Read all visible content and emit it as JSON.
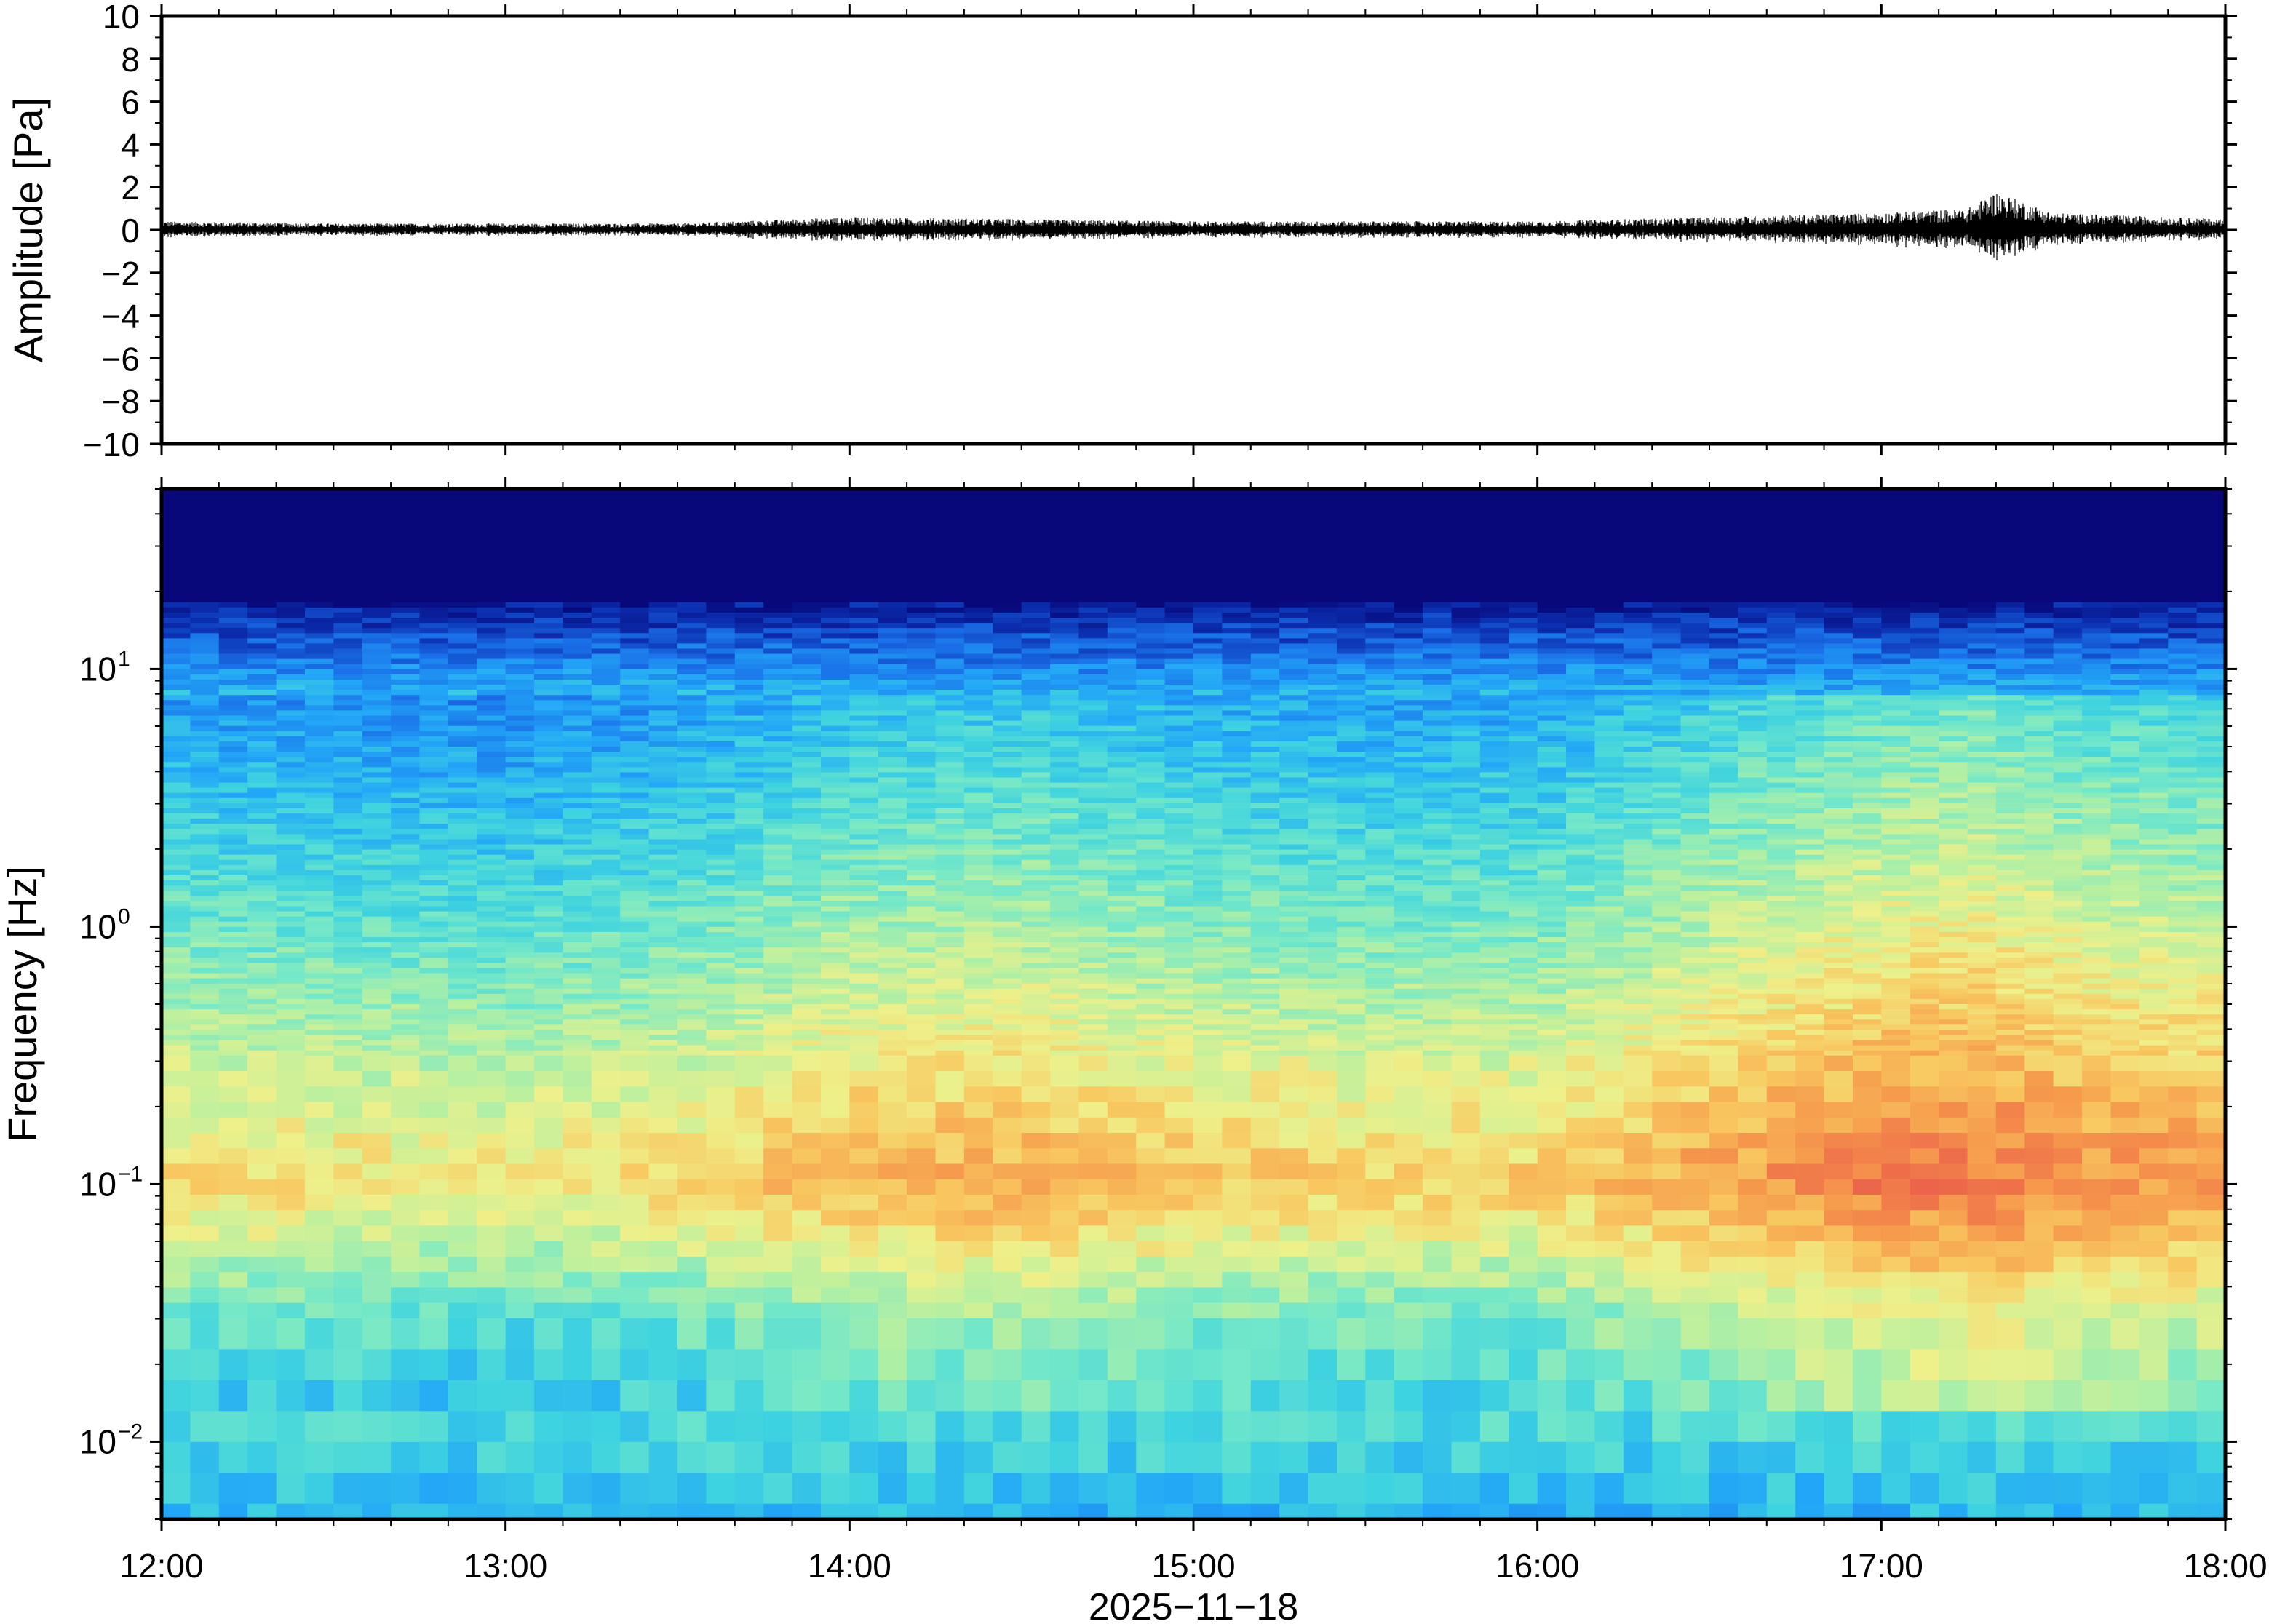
{
  "colors": {
    "frame": "#000000",
    "trace": "#000000",
    "colormap": [
      "#08087a",
      "#0b2fb0",
      "#1a6fe8",
      "#22a6f7",
      "#3ed3e0",
      "#74e8c8",
      "#b9f0a0",
      "#eef08a",
      "#f8c860",
      "#f69a4c",
      "#ee6a4a",
      "#e04858"
    ]
  },
  "chart_data": [
    {
      "type": "line",
      "panel": "waveform",
      "title": "",
      "xlabel": "",
      "ylabel": "Amplitude [Pa]",
      "ylim": [
        -10,
        10
      ],
      "yticks": [
        10,
        8,
        6,
        4,
        2,
        0,
        -2,
        -4,
        -6,
        -8,
        -10
      ],
      "ytick_labels": [
        "10",
        "8",
        "6",
        "4",
        "2",
        "0",
        "−2",
        "−4",
        "−6",
        "−8",
        "−10"
      ],
      "xlim": [
        "12:00",
        "18:00"
      ],
      "grid": false,
      "series": [
        {
          "x": [
            "12:00",
            "12:30",
            "13:00",
            "13:30",
            "14:00",
            "14:30",
            "15:00",
            "15:30",
            "16:00",
            "16:30",
            "17:00",
            "17:15",
            "17:20",
            "17:30",
            "18:00"
          ],
          "envelope": [
            0.4,
            0.3,
            0.3,
            0.3,
            0.6,
            0.5,
            0.4,
            0.4,
            0.4,
            0.6,
            0.8,
            1.0,
            1.8,
            0.8,
            0.5
          ]
        }
      ]
    },
    {
      "type": "heatmap",
      "panel": "spectrogram",
      "title": "",
      "xlabel": "2025−11−18",
      "ylabel": "Frequency [Hz]",
      "yscale": "log",
      "ylim": [
        0.005,
        50
      ],
      "yticks": [
        0.01,
        0.1,
        1,
        10
      ],
      "ytick_labels": [
        {
          "base": "10",
          "exp": "−2"
        },
        {
          "base": "10",
          "exp": "−1"
        },
        {
          "base": "10",
          "exp": "0"
        },
        {
          "base": "10",
          "exp": "1"
        }
      ],
      "x": [
        "12:00",
        "13:00",
        "14:00",
        "15:00",
        "16:00",
        "17:00",
        "18:00"
      ],
      "xtick_labels": [
        "12:00",
        "13:00",
        "14:00",
        "15:00",
        "16:00",
        "17:00",
        "18:00"
      ],
      "grid": false,
      "columns": 72,
      "time_profile": {
        "hours": [
          0,
          0.5,
          1,
          1.5,
          2,
          2.5,
          3,
          3.5,
          4,
          4.5,
          5,
          5.3,
          5.6,
          6
        ],
        "energy": [
          0.45,
          0.4,
          0.35,
          0.45,
          0.65,
          0.7,
          0.55,
          0.5,
          0.5,
          0.75,
          0.95,
          1.0,
          0.85,
          0.8
        ]
      }
    }
  ]
}
